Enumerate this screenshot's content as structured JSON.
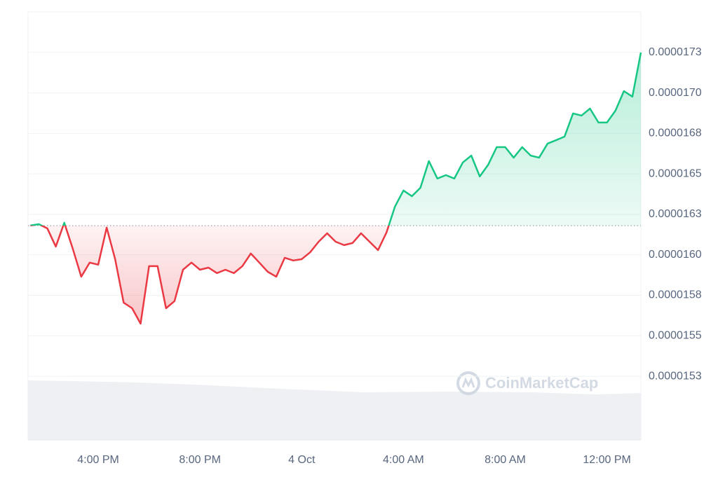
{
  "chart_data": {
    "type": "line",
    "categories": [
      null,
      null,
      null,
      null,
      null,
      null,
      null,
      null,
      "4:00 PM",
      null,
      null,
      null,
      null,
      null,
      null,
      null,
      null,
      null,
      null,
      null,
      "8:00 PM",
      null,
      null,
      null,
      null,
      null,
      null,
      null,
      null,
      null,
      null,
      null,
      "4 Oct",
      null,
      null,
      null,
      null,
      null,
      null,
      null,
      null,
      null,
      null,
      null,
      "4:00 AM",
      null,
      null,
      null,
      null,
      null,
      null,
      null,
      null,
      null,
      null,
      null,
      "8:00 AM",
      null,
      null,
      null,
      null,
      null,
      null,
      null,
      null,
      null,
      null,
      null,
      "12:00 PM",
      null,
      null,
      null,
      null
    ],
    "values": [
      1.6181e-05,
      1.6189e-05,
      1.6163e-05,
      1.6051e-05,
      1.6198e-05,
      1.6038e-05,
      1.5865e-05,
      1.5952e-05,
      1.5939e-05,
      1.6168e-05,
      1.5973e-05,
      1.5705e-05,
      1.567e-05,
      1.5575e-05,
      1.593e-05,
      1.593e-05,
      1.567e-05,
      1.5714e-05,
      1.5908e-05,
      1.5952e-05,
      1.5908e-05,
      1.5921e-05,
      1.5887e-05,
      1.5908e-05,
      1.5887e-05,
      1.593e-05,
      1.6008e-05,
      1.5952e-05,
      1.5895e-05,
      1.5865e-05,
      1.5982e-05,
      1.5965e-05,
      1.5973e-05,
      1.6016e-05,
      1.6081e-05,
      1.6133e-05,
      1.6081e-05,
      1.606e-05,
      1.6073e-05,
      1.6133e-05,
      1.6081e-05,
      1.6029e-05,
      1.6138e-05,
      1.6298e-05,
      1.6397e-05,
      1.6362e-05,
      1.6414e-05,
      1.6579e-05,
      1.6471e-05,
      1.6492e-05,
      1.6471e-05,
      1.657e-05,
      1.6613e-05,
      1.6484e-05,
      1.6557e-05,
      1.6665e-05,
      1.6665e-05,
      1.66e-05,
      1.6665e-05,
      1.6613e-05,
      1.66e-05,
      1.6687e-05,
      1.6708e-05,
      1.673e-05,
      1.6873e-05,
      1.686e-05,
      1.6903e-05,
      1.6817e-05,
      1.6817e-05,
      1.689e-05,
      1.7011e-05,
      1.6977e-05,
      1.7249e-05
    ],
    "baseline": 1.618e-05,
    "color": {
      "up": "#16c784",
      "down": "#ea3943"
    },
    "ylim": [
      1.49e-05,
      1.75e-05
    ],
    "yticks": [
      {
        "value": 1.525e-05,
        "label": "0.0000153"
      },
      {
        "value": 1.55e-05,
        "label": "0.0000155"
      },
      {
        "value": 1.575e-05,
        "label": "0.0000158"
      },
      {
        "value": 1.6e-05,
        "label": "0.0000160"
      },
      {
        "value": 1.625e-05,
        "label": "0.0000163"
      },
      {
        "value": 1.65e-05,
        "label": "0.0000165"
      },
      {
        "value": 1.675e-05,
        "label": "0.0000168"
      },
      {
        "value": 1.7e-05,
        "label": "0.0000170"
      },
      {
        "value": 1.725e-05,
        "label": "0.0000173"
      }
    ],
    "grid": true,
    "watermark": "CoinMarketCap"
  }
}
